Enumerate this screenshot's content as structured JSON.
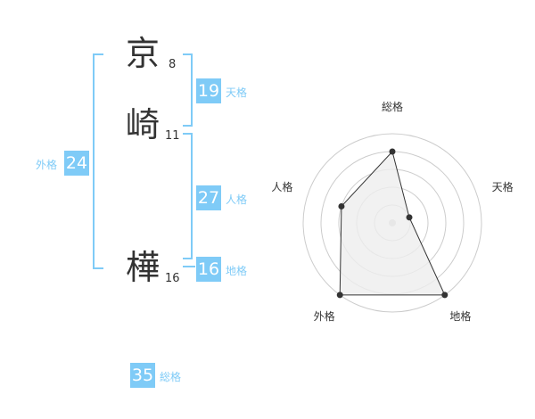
{
  "name_chars": [
    {
      "char": "京",
      "strokes": "8"
    },
    {
      "char": "崎",
      "strokes": "11"
    },
    {
      "char": "樺",
      "strokes": "16"
    }
  ],
  "kaku": {
    "tenkaku": {
      "value": "19",
      "label": "天格"
    },
    "jinkaku": {
      "value": "27",
      "label": "人格"
    },
    "chikaku": {
      "value": "16",
      "label": "地格"
    },
    "gaikaku": {
      "value": "24",
      "label": "外格"
    },
    "soukaku": {
      "value": "35",
      "label": "総格"
    }
  },
  "colors": {
    "accent": "#7fcbf7",
    "radar_fill": "#eeeeee",
    "radar_line": "#333333",
    "ring": "#cccccc"
  },
  "chart_data": {
    "type": "radar",
    "axes": [
      "総格",
      "天格",
      "地格",
      "外格",
      "人格"
    ],
    "values": [
      4,
      1,
      5,
      5,
      3
    ],
    "range": [
      0,
      5
    ],
    "rings": 5
  }
}
